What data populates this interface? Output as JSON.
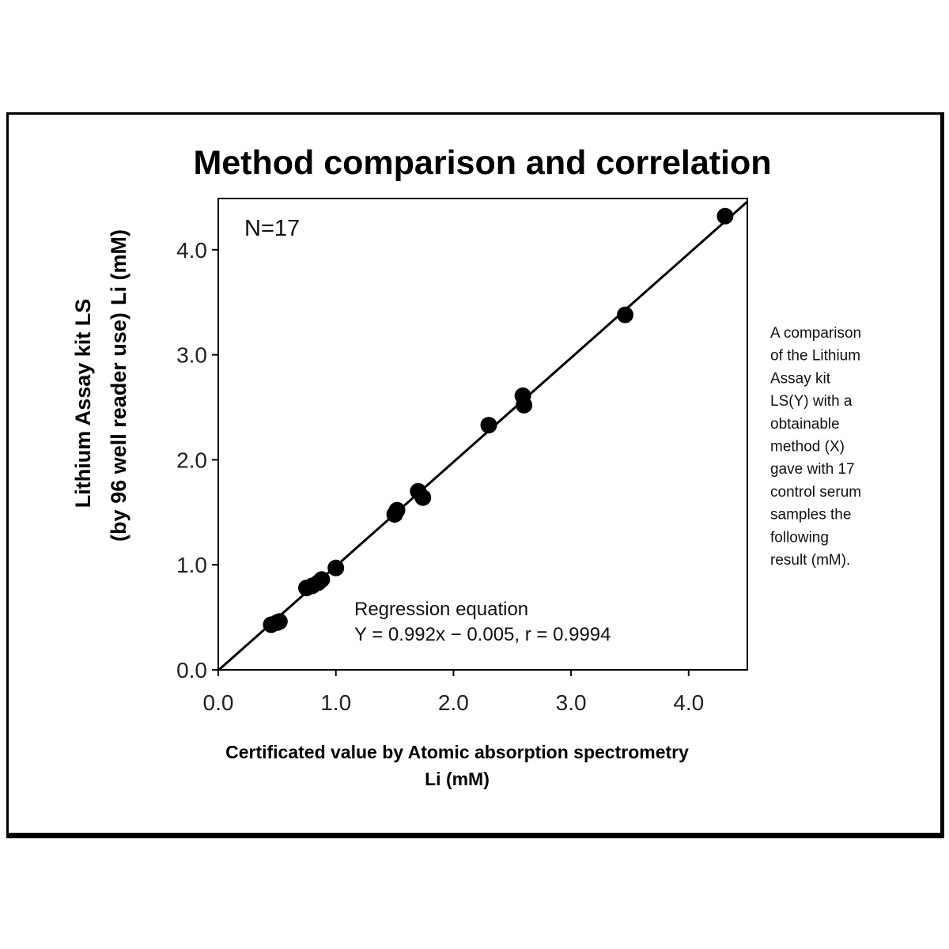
{
  "chart_data": {
    "type": "scatter",
    "title": "Method comparison and correlation",
    "xlabel": [
      "Certificated value by Atomic absorption spectrometry",
      "Li (mM)"
    ],
    "ylabel": [
      "Lithium Assay kit LS",
      "(by  96 well reader  use)",
      "Li (mM)"
    ],
    "xlim": [
      0,
      4.5
    ],
    "ylim": [
      0,
      4.5
    ],
    "xticks": [
      "0.0",
      "1.0",
      "2.0",
      "3.0",
      "4.0"
    ],
    "yticks": [
      "0.0",
      "1.0",
      "2.0",
      "3.0",
      "4.0"
    ],
    "grid": false,
    "annotations": {
      "n": "N=17",
      "regression_title": "Regression equation",
      "regression_eq": "Y = 0.992x − 0.005, r = 0.9994"
    },
    "fit_line": {
      "slope": 0.992,
      "intercept": -0.005
    },
    "points": [
      {
        "x": 0.45,
        "y": 0.43
      },
      {
        "x": 0.5,
        "y": 0.45
      },
      {
        "x": 0.52,
        "y": 0.46
      },
      {
        "x": 0.75,
        "y": 0.78
      },
      {
        "x": 0.8,
        "y": 0.8
      },
      {
        "x": 0.85,
        "y": 0.83
      },
      {
        "x": 0.88,
        "y": 0.86
      },
      {
        "x": 1.0,
        "y": 0.97
      },
      {
        "x": 1.5,
        "y": 1.48
      },
      {
        "x": 1.52,
        "y": 1.52
      },
      {
        "x": 1.7,
        "y": 1.7
      },
      {
        "x": 1.74,
        "y": 1.64
      },
      {
        "x": 2.3,
        "y": 2.33
      },
      {
        "x": 2.59,
        "y": 2.61
      },
      {
        "x": 2.6,
        "y": 2.52
      },
      {
        "x": 3.46,
        "y": 3.38
      },
      {
        "x": 4.31,
        "y": 4.32
      }
    ]
  },
  "side_note": [
    "A comparison",
    "of the Lithium",
    "Assay kit",
    "LS(Y) with a",
    "obtainable",
    "method  (X)",
    "gave with 17",
    "control serum",
    "samples the",
    "following",
    "result (mM)."
  ]
}
